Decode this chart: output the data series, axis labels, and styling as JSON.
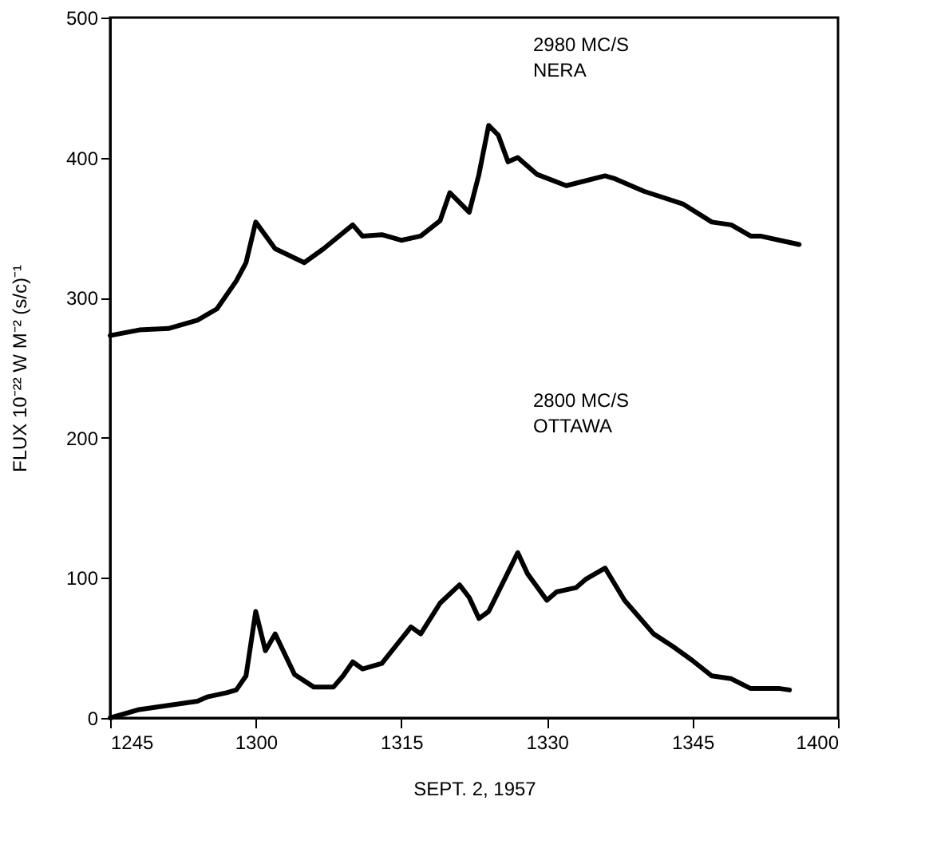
{
  "chart_data": {
    "type": "line",
    "xlabel": "SEPT. 2, 1957",
    "ylabel": "FLUX 10⁻²² W M⁻² (s/c)⁻¹",
    "xlim": [
      "1957-09-02T12:45",
      "1957-09-02T14:00"
    ],
    "xticks": [
      {
        "value": "1957-09-02T12:45",
        "label": "1245"
      },
      {
        "value": "1957-09-02T13:00",
        "label": "1300"
      },
      {
        "value": "1957-09-02T13:15",
        "label": "1315"
      },
      {
        "value": "1957-09-02T13:30",
        "label": "1330"
      },
      {
        "value": "1957-09-02T13:45",
        "label": "1345"
      },
      {
        "value": "1957-09-02T14:00",
        "label": "1400"
      }
    ],
    "ylim": [
      0,
      500
    ],
    "yticks": [
      0,
      100,
      200,
      300,
      400,
      500
    ],
    "grid": false,
    "line_style": "solid",
    "series": [
      {
        "color": "#000000",
        "x": [
          "1957-09-02T12:45",
          "1957-09-02T12:48",
          "1957-09-02T12:51",
          "1957-09-02T12:54",
          "1957-09-02T12:56",
          "1957-09-02T12:58",
          "1957-09-02T12:59",
          "1957-09-02T13:00",
          "1957-09-02T13:02",
          "1957-09-02T13:05",
          "1957-09-02T13:07",
          "1957-09-02T13:10",
          "1957-09-02T13:11",
          "1957-09-02T13:13",
          "1957-09-02T13:15",
          "1957-09-02T13:17",
          "1957-09-02T13:19",
          "1957-09-02T13:20",
          "1957-09-02T13:22",
          "1957-09-02T13:23",
          "1957-09-02T13:24",
          "1957-09-02T13:25",
          "1957-09-02T13:26",
          "1957-09-02T13:27",
          "1957-09-02T13:29",
          "1957-09-02T13:32",
          "1957-09-02T13:36",
          "1957-09-02T13:37",
          "1957-09-02T13:40",
          "1957-09-02T13:44",
          "1957-09-02T13:47",
          "1957-09-02T13:49",
          "1957-09-02T13:51",
          "1957-09-02T13:52",
          "1957-09-02T13:54",
          "1957-09-02T13:56"
        ],
        "values": [
          273,
          277,
          278,
          284,
          292,
          312,
          325,
          354,
          335,
          325,
          335,
          352,
          344,
          345,
          341,
          344,
          355,
          375,
          361,
          388,
          423,
          416,
          397,
          400,
          388,
          380,
          387,
          385,
          376,
          367,
          354,
          352,
          344,
          344,
          341,
          338
        ]
      },
      {
        "color": "#000000",
        "x": [
          "1957-09-02T12:45",
          "1957-09-02T12:48",
          "1957-09-02T12:51",
          "1957-09-02T12:54",
          "1957-09-02T12:55",
          "1957-09-02T12:57",
          "1957-09-02T12:58",
          "1957-09-02T12:59",
          "1957-09-02T13:00",
          "1957-09-02T13:01",
          "1957-09-02T13:02",
          "1957-09-02T13:04",
          "1957-09-02T13:06",
          "1957-09-02T13:08",
          "1957-09-02T13:09",
          "1957-09-02T13:10",
          "1957-09-02T13:11",
          "1957-09-02T13:13",
          "1957-09-02T13:16",
          "1957-09-02T13:17",
          "1957-09-02T13:19",
          "1957-09-02T13:21",
          "1957-09-02T13:22",
          "1957-09-02T13:23",
          "1957-09-02T13:24",
          "1957-09-02T13:26",
          "1957-09-02T13:27",
          "1957-09-02T13:28",
          "1957-09-02T13:30",
          "1957-09-02T13:31",
          "1957-09-02T13:33",
          "1957-09-02T13:34",
          "1957-09-02T13:36",
          "1957-09-02T13:38",
          "1957-09-02T13:39",
          "1957-09-02T13:41",
          "1957-09-02T13:43",
          "1957-09-02T13:45",
          "1957-09-02T13:47",
          "1957-09-02T13:49",
          "1957-09-02T13:51",
          "1957-09-02T13:54",
          "1957-09-02T13:55"
        ],
        "values": [
          0,
          6,
          9,
          12,
          15,
          18,
          20,
          30,
          76,
          48,
          60,
          31,
          22,
          22,
          30,
          40,
          35,
          39,
          65,
          60,
          82,
          95,
          86,
          71,
          76,
          104,
          118,
          103,
          84,
          90,
          93,
          99,
          107,
          84,
          76,
          60,
          51,
          41,
          30,
          28,
          21,
          21,
          20
        ]
      }
    ],
    "annotations": [
      "2980 MC/S\nNERA",
      "2800     MC/S\nOTTAWA"
    ]
  }
}
